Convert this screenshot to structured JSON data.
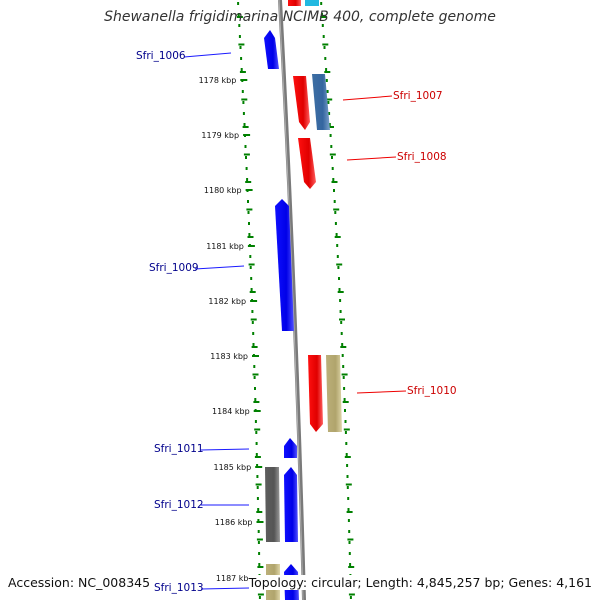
{
  "title": "Shewanella frigidimarina NCIMB 400, complete genome",
  "footer": {
    "accession": "Accession: NC_008345",
    "summary": "Topology: circular; Length: 4,845,257 bp; Genes: 4,161"
  },
  "colors": {
    "forward_cds": "#0000ff",
    "reverse_cds": "#ff0000",
    "forward_label": "#00008b",
    "reverse_label": "#cc0000",
    "backbone": "#888888",
    "tick": "#008000",
    "feature_blue_grey": "#4a78aa",
    "feature_khaki": "#c8bc82",
    "feature_grey": "#6e6e6e",
    "feature_cyan": "#22b8e0"
  },
  "ruler": {
    "labels": [
      "1178 kbp",
      "1179 kbp",
      "1180 kbp",
      "1181 kbp",
      "1182 kbp",
      "1183 kbp",
      "1184 kbp",
      "1185 kbp",
      "1186 kbp",
      "1187 kbp"
    ]
  },
  "genes": [
    {
      "name": "Sfri_1006",
      "strand": "forward"
    },
    {
      "name": "Sfri_1007",
      "strand": "reverse"
    },
    {
      "name": "Sfri_1008",
      "strand": "reverse"
    },
    {
      "name": "Sfri_1009",
      "strand": "forward"
    },
    {
      "name": "Sfri_1010",
      "strand": "reverse"
    },
    {
      "name": "Sfri_1011",
      "strand": "forward"
    },
    {
      "name": "Sfri_1012",
      "strand": "forward"
    },
    {
      "name": "Sfri_1013",
      "strand": "forward"
    }
  ]
}
